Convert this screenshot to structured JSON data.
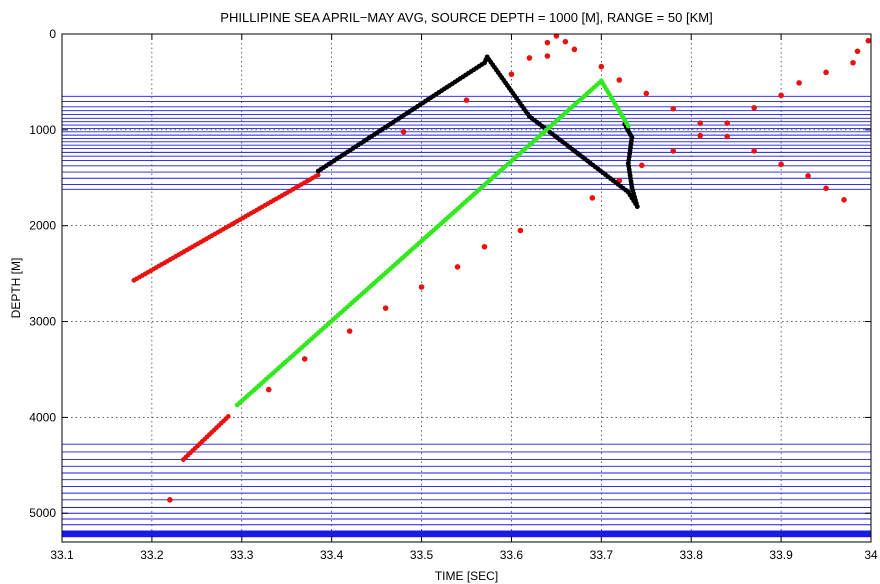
{
  "chart_data": {
    "type": "scatter",
    "title": "PHILLIPINE SEA APRIL−MAY AVG, SOURCE DEPTH = 1000 [M], RANGE = 50 [KM]",
    "xlabel": "TIME [SEC]",
    "ylabel": "DEPTH [M]",
    "xlim": [
      33.1,
      34.0
    ],
    "ylim": [
      5300,
      0
    ],
    "y_inverted": true,
    "grid": true,
    "grid_style": "dotted",
    "xticks": [
      "33.1",
      "33.2",
      "33.3",
      "33.4",
      "33.5",
      "33.6",
      "33.7",
      "33.8",
      "33.9",
      "34"
    ],
    "yticks": [
      "0",
      "1000",
      "2000",
      "3000",
      "4000",
      "5000"
    ],
    "colors": {
      "red": "#e8120f",
      "black": "#000000",
      "green": "#33e81e",
      "bands": "#1a1ae6"
    },
    "horizontal_lines": {
      "color": "#1a1ae6",
      "upper_band": [
        650,
        705,
        760,
        800,
        840,
        880,
        915,
        950,
        985,
        1020,
        1055,
        1090,
        1125,
        1160,
        1195,
        1235,
        1275,
        1320,
        1375,
        1440,
        1505,
        1570,
        1620
      ],
      "lower_band": [
        4280,
        4360,
        4440,
        4510,
        4580,
        4650,
        4720,
        4790,
        4860,
        4940,
        5000,
        5060,
        5120
      ],
      "thick_band": [
        5180,
        5250
      ]
    },
    "series": [
      {
        "color": "red",
        "style": "line",
        "x": [
          33.18,
          33.385
        ],
        "y": [
          2570,
          1470
        ]
      },
      {
        "color": "red",
        "style": "line",
        "x": [
          33.235,
          33.285
        ],
        "y": [
          4440,
          3990
        ]
      },
      {
        "color": "red",
        "style": "points",
        "x": [
          33.22,
          33.33,
          33.37,
          33.42,
          33.46,
          33.5,
          33.54,
          33.55,
          33.57,
          33.61,
          33.64,
          33.69,
          33.72,
          33.48,
          33.6,
          33.62,
          33.64,
          33.65,
          33.66,
          33.67,
          33.7,
          33.72,
          33.75,
          33.78,
          33.81,
          33.84,
          33.87,
          33.9,
          33.92,
          33.95,
          33.98,
          33.78,
          33.81,
          33.84,
          33.87,
          33.9,
          33.93,
          33.95,
          33.97,
          33.985,
          33.997,
          33.745
        ],
        "y": [
          4860,
          3710,
          3390,
          3100,
          2860,
          2640,
          2430,
          690,
          2220,
          2050,
          230,
          1710,
          1530,
          1020,
          420,
          250,
          90,
          20,
          80,
          160,
          340,
          480,
          620,
          780,
          930,
          930,
          770,
          640,
          510,
          400,
          300,
          1220,
          1060,
          1070,
          1220,
          1360,
          1480,
          1610,
          1730,
          180,
          70,
          1370
        ]
      },
      {
        "color": "black",
        "style": "line",
        "x": [
          33.385,
          33.57,
          33.573,
          33.62,
          33.73,
          33.74
        ],
        "y": [
          1430,
          300,
          240,
          860,
          1650,
          1800
        ]
      },
      {
        "color": "black",
        "style": "line",
        "x": [
          33.726,
          33.734,
          33.73,
          33.734,
          33.74
        ],
        "y": [
          940,
          1080,
          1350,
          1600,
          1800
        ]
      },
      {
        "color": "green",
        "style": "line",
        "x": [
          33.295,
          33.7,
          33.73
        ],
        "y": [
          3870,
          490,
          960
        ]
      }
    ]
  }
}
